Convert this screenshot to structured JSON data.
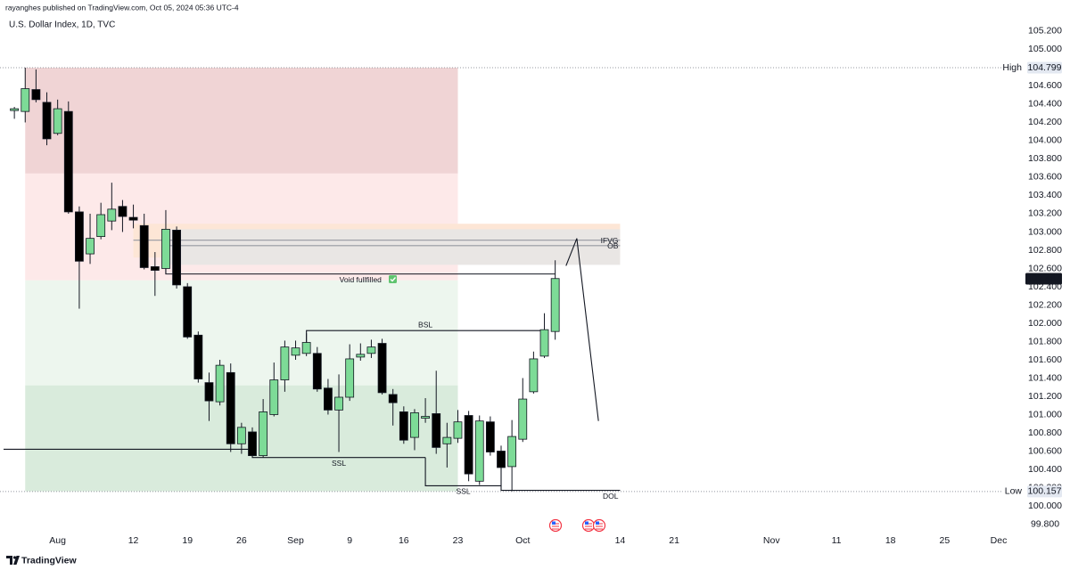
{
  "header": {
    "published": "rayanghes published on TradingView.com, Oct 05, 2024 05:36 UTC-4"
  },
  "footer": {
    "brand": "TradingView"
  },
  "chart_data": {
    "type": "candlestick",
    "title": "U.S. Dollar Index, 1D, TVC",
    "x": [
      "2024-07-26",
      "2024-07-29",
      "2024-07-30",
      "2024-07-31",
      "2024-08-01",
      "2024-08-02",
      "2024-08-05",
      "2024-08-06",
      "2024-08-07",
      "2024-08-08",
      "2024-08-09",
      "2024-08-12",
      "2024-08-13",
      "2024-08-14",
      "2024-08-15",
      "2024-08-16",
      "2024-08-19",
      "2024-08-20",
      "2024-08-21",
      "2024-08-22",
      "2024-08-23",
      "2024-08-26",
      "2024-08-27",
      "2024-08-28",
      "2024-08-29",
      "2024-08-30",
      "2024-09-02",
      "2024-09-03",
      "2024-09-04",
      "2024-09-05",
      "2024-09-06",
      "2024-09-09",
      "2024-09-10",
      "2024-09-11",
      "2024-09-12",
      "2024-09-13",
      "2024-09-16",
      "2024-09-17",
      "2024-09-18",
      "2024-09-19",
      "2024-09-20",
      "2024-09-23",
      "2024-09-24",
      "2024-09-25",
      "2024-09-26",
      "2024-09-27",
      "2024-09-30",
      "2024-10-01",
      "2024-10-02",
      "2024-10-03",
      "2024-10-04"
    ],
    "open": [
      104.33,
      104.32,
      104.56,
      104.42,
      104.08,
      104.32,
      103.22,
      102.76,
      102.95,
      103.12,
      103.28,
      103.16,
      103.07,
      102.62,
      102.6,
      103.02,
      102.4,
      101.87,
      101.35,
      101.14,
      101.46,
      100.68,
      100.81,
      100.55,
      101.0,
      101.38,
      101.65,
      101.67,
      101.67,
      101.29,
      101.05,
      101.19,
      101.63,
      101.67,
      101.78,
      101.22,
      101.03,
      100.75,
      100.96,
      101.01,
      100.68,
      100.74,
      100.99,
      100.27,
      100.92,
      100.6,
      100.43,
      100.73,
      101.25,
      101.64,
      101.91
    ],
    "high": [
      104.37,
      104.8,
      104.78,
      104.53,
      104.45,
      104.43,
      103.28,
      103.2,
      103.32,
      103.54,
      103.35,
      103.3,
      103.2,
      102.78,
      103.24,
      103.06,
      102.44,
      101.91,
      101.46,
      101.6,
      101.56,
      100.91,
      100.86,
      101.17,
      101.57,
      101.81,
      101.81,
      101.89,
      101.74,
      101.39,
      101.44,
      101.77,
      101.78,
      101.82,
      101.83,
      101.28,
      101.09,
      101.06,
      101.18,
      101.48,
      100.91,
      101.05,
      101.04,
      100.99,
      100.98,
      100.66,
      100.94,
      101.4,
      101.69,
      102.11,
      102.69
    ],
    "low": [
      104.24,
      104.2,
      104.42,
      103.95,
      104.06,
      103.2,
      102.16,
      102.65,
      102.92,
      103.02,
      103.0,
      103.04,
      102.59,
      102.3,
      102.54,
      102.38,
      101.83,
      101.35,
      100.93,
      101.1,
      100.59,
      100.57,
      100.53,
      100.53,
      100.98,
      101.25,
      101.6,
      101.64,
      101.25,
      101.0,
      100.59,
      101.15,
      101.59,
      101.62,
      101.22,
      100.88,
      100.68,
      100.61,
      100.91,
      100.57,
      100.42,
      100.69,
      100.27,
      100.23,
      100.55,
      100.19,
      100.16,
      100.7,
      101.23,
      101.62,
      101.82
    ],
    "close": [
      104.35,
      104.57,
      104.45,
      104.02,
      104.35,
      103.22,
      102.68,
      102.93,
      103.19,
      103.25,
      103.17,
      103.13,
      102.61,
      102.58,
      103.03,
      102.42,
      101.85,
      101.39,
      101.15,
      101.54,
      100.68,
      100.86,
      100.55,
      101.03,
      101.38,
      101.74,
      101.73,
      101.79,
      101.28,
      101.05,
      101.19,
      101.61,
      101.66,
      101.74,
      101.24,
      101.13,
      100.72,
      101.02,
      100.98,
      100.64,
      100.75,
      100.92,
      100.35,
      100.93,
      100.59,
      100.42,
      100.76,
      101.17,
      101.61,
      101.93,
      102.49
    ],
    "up_color": "#7ddb97",
    "down_color": "#000000",
    "wick_color": "#131722",
    "xlim": [
      "2024-07-25",
      "2024-12-02"
    ],
    "xticks": [
      {
        "value": "2024-08-01",
        "label": "Aug"
      },
      {
        "value": "2024-08-12",
        "label": "12"
      },
      {
        "value": "2024-08-19",
        "label": "19"
      },
      {
        "value": "2024-08-26",
        "label": "26"
      },
      {
        "value": "2024-09-02",
        "label": "Sep"
      },
      {
        "value": "2024-09-09",
        "label": "9"
      },
      {
        "value": "2024-09-16",
        "label": "16"
      },
      {
        "value": "2024-09-23",
        "label": "23"
      },
      {
        "value": "2024-10-01",
        "label": "Oct"
      },
      {
        "value": "2024-10-14",
        "label": "14"
      },
      {
        "value": "2024-10-21",
        "label": "21"
      },
      {
        "value": "2024-11-01",
        "label": "Nov"
      },
      {
        "value": "2024-11-11",
        "label": "11"
      },
      {
        "value": "2024-11-18",
        "label": "18"
      },
      {
        "value": "2024-11-25",
        "label": "25"
      },
      {
        "value": "2024-12-02",
        "label": "Dec"
      }
    ],
    "ylim": [
      99.717,
      105.541
    ],
    "yticks": [
      {
        "value": 99.8,
        "label": "99.800"
      },
      {
        "value": 100.0,
        "label": "100.000"
      },
      {
        "value": 100.2,
        "label": "100.200"
      },
      {
        "value": 100.4,
        "label": "100.400"
      },
      {
        "value": 100.6,
        "label": "100.600"
      },
      {
        "value": 100.8,
        "label": "100.800"
      },
      {
        "value": 101.0,
        "label": "101.000"
      },
      {
        "value": 101.2,
        "label": "101.200"
      },
      {
        "value": 101.4,
        "label": "101.400"
      },
      {
        "value": 101.6,
        "label": "101.600"
      },
      {
        "value": 101.8,
        "label": "101.800"
      },
      {
        "value": 102.0,
        "label": "102.000"
      },
      {
        "value": 102.2,
        "label": "102.200"
      },
      {
        "value": 102.4,
        "label": "102.400"
      },
      {
        "value": 102.6,
        "label": "102.600"
      },
      {
        "value": 102.8,
        "label": "102.800"
      },
      {
        "value": 103.0,
        "label": "103.000"
      },
      {
        "value": 103.2,
        "label": "103.200"
      },
      {
        "value": 103.4,
        "label": "103.400"
      },
      {
        "value": 103.6,
        "label": "103.600"
      },
      {
        "value": 103.8,
        "label": "103.800"
      },
      {
        "value": 104.0,
        "label": "104.000"
      },
      {
        "value": 104.2,
        "label": "104.200"
      },
      {
        "value": 104.4,
        "label": "104.400"
      },
      {
        "value": 104.6,
        "label": "104.600"
      },
      {
        "value": 104.8,
        "label": "104.800"
      },
      {
        "value": 105.0,
        "label": "105.000"
      },
      {
        "value": 105.2,
        "label": "105.200"
      }
    ],
    "grid": false,
    "high_marker": {
      "label": "High",
      "value": 104.799
    },
    "low_marker": {
      "label": "Low",
      "value": 100.157
    },
    "last_price": 102.487,
    "zones": [
      {
        "x": [
          "2024-07-29",
          "2024-09-23"
        ],
        "y": [
          104.8,
          103.64
        ],
        "color": "#f0d4d5"
      },
      {
        "x": [
          "2024-07-29",
          "2024-09-23"
        ],
        "y": [
          103.64,
          102.47
        ],
        "color": "#fde9e9"
      },
      {
        "x": [
          "2024-07-29",
          "2024-09-23"
        ],
        "y": [
          102.47,
          101.32
        ],
        "color": "#edf6ee"
      },
      {
        "x": [
          "2024-07-29",
          "2024-09-23"
        ],
        "y": [
          101.32,
          100.16
        ],
        "color": "#d9ebdc"
      },
      {
        "x": [
          "2024-08-12",
          "2024-10-14"
        ],
        "y": [
          103.09,
          102.72
        ],
        "color": "#fde6d6"
      },
      {
        "x": [
          "2024-08-15",
          "2024-10-14"
        ],
        "y": [
          103.03,
          102.64
        ],
        "color": "#e9e6e4"
      }
    ],
    "lines": [
      {
        "x": [
          "2024-07-25",
          "2024-08-27"
        ],
        "y": [
          100.62,
          100.62
        ],
        "color": "#131722"
      },
      {
        "x": [
          "2024-08-15",
          "2024-08-15",
          "2024-10-04"
        ],
        "y": [
          102.62,
          102.54,
          102.54
        ],
        "color": "#131722",
        "label": "Void fullfilled",
        "label_color": "#131722",
        "label_position": "middle-below"
      },
      {
        "x": [
          "2024-09-03",
          "2024-09-03",
          "2024-10-03"
        ],
        "y": [
          101.79,
          101.92,
          101.92
        ],
        "color": "#131722",
        "label": "BSL",
        "label_color": "#e0524f",
        "label_position": "middle-above"
      },
      {
        "x": [
          "2024-08-27",
          "2024-08-27",
          "2024-09-18"
        ],
        "y": [
          100.62,
          100.53,
          100.53
        ],
        "color": "#131722",
        "label": "SSL",
        "label_color": "#e0524f",
        "label_position": "middle-below"
      },
      {
        "x": [
          "2024-09-18",
          "2024-09-18",
          "2024-09-27"
        ],
        "y": [
          100.53,
          100.22,
          100.22
        ],
        "color": "#131722",
        "label": "SSL",
        "label_color": "#e0524f",
        "label_position": "middle-below"
      },
      {
        "x": [
          "2024-09-27",
          "2024-09-27",
          "2024-10-14"
        ],
        "y": [
          100.42,
          100.17,
          100.17
        ],
        "color": "#131722",
        "label": "DOL",
        "label_color": "#e0524f",
        "label_position": "end-below"
      },
      {
        "x": [
          "2024-08-12",
          "2024-10-14"
        ],
        "y": [
          102.91,
          102.91
        ],
        "color": "#9598a1",
        "label": "IFVG",
        "label_color": "#50535e",
        "label_position": "end"
      },
      {
        "x": [
          "2024-08-15",
          "2024-10-14"
        ],
        "y": [
          102.85,
          102.85
        ],
        "color": "#9598a1",
        "label": "OB",
        "label_color": "#50535e",
        "label_position": "end"
      },
      {
        "x": [
          "2024-10-07",
          "2024-10-08",
          "2024-10-10"
        ],
        "y": [
          102.63,
          102.93,
          100.93
        ],
        "color": "#131722"
      }
    ]
  }
}
